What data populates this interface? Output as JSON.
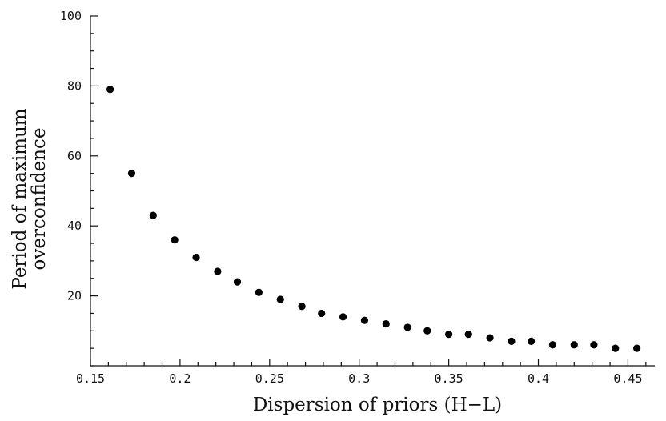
{
  "chart_data": {
    "type": "scatter",
    "title": "",
    "xlabel": "Dispersion of priors (H−L)",
    "ylabel_lines": [
      "Period of maximum",
      "overconfidence"
    ],
    "xlim": [
      0.15,
      0.465
    ],
    "ylim": [
      0,
      100
    ],
    "xticks": [
      0.15,
      0.2,
      0.25,
      0.3,
      0.35,
      0.4,
      0.45
    ],
    "xtick_labels": [
      "0.15",
      "0.2",
      "0.25",
      "0.3",
      "0.35",
      "0.4",
      "0.45"
    ],
    "yticks": [
      20,
      40,
      60,
      80,
      100
    ],
    "ytick_labels": [
      "20",
      "40",
      "60",
      "80",
      "100"
    ],
    "grid": false,
    "series": [
      {
        "x": [
          0.161,
          0.173,
          0.185,
          0.197,
          0.209,
          0.221,
          0.232,
          0.244,
          0.256,
          0.268,
          0.279,
          0.291,
          0.303,
          0.315,
          0.327,
          0.338,
          0.35,
          0.361,
          0.373,
          0.385,
          0.396,
          0.408,
          0.42,
          0.431,
          0.443,
          0.455
        ],
        "y": [
          79,
          55,
          43,
          36,
          31,
          27,
          24,
          21,
          19,
          17,
          15,
          14,
          13,
          12,
          11,
          10,
          9,
          9,
          8,
          7,
          7,
          6,
          6,
          6,
          5,
          5
        ]
      }
    ]
  }
}
